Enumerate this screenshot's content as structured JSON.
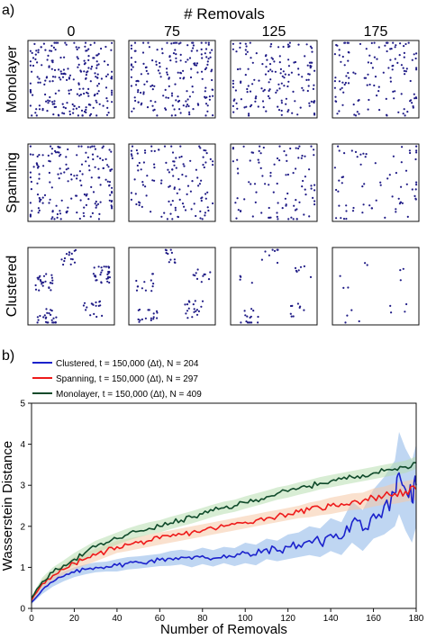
{
  "panel_a": {
    "label": "a)",
    "top_title": "# Removals",
    "columns": [
      "0",
      "75",
      "125",
      "175"
    ],
    "rows": [
      {
        "label": "Monolayer",
        "kind": "uniform",
        "counts": [
          409,
          334,
          284,
          234
        ]
      },
      {
        "label": "Spanning",
        "kind": "spanning",
        "counts": [
          297,
          222,
          172,
          122
        ]
      },
      {
        "label": "Clustered",
        "kind": "clustered",
        "counts": [
          204,
          129,
          79,
          29
        ]
      }
    ],
    "dot_color": "#1f1b86"
  },
  "panel_b": {
    "label": "b)",
    "chart_data": {
      "type": "line",
      "xlabel": "Number of Removals",
      "ylabel": "Wasserstein Distance",
      "xlim": [
        0,
        180
      ],
      "ylim": [
        0,
        5
      ],
      "xticks": [
        "0",
        "20",
        "40",
        "60",
        "80",
        "100",
        "120",
        "140",
        "160",
        "180"
      ],
      "yticks": [
        "0",
        "1",
        "2",
        "3",
        "4",
        "5"
      ],
      "legend_position": "top-left (above plot)",
      "series": [
        {
          "name": "Clustered, t = 150,000 (Δt), N = 204",
          "color": "#1b22cc",
          "band_color": "#8ab4e8",
          "x": [
            0,
            5,
            10,
            15,
            20,
            25,
            30,
            35,
            40,
            45,
            50,
            55,
            60,
            65,
            70,
            75,
            80,
            85,
            90,
            95,
            100,
            105,
            110,
            115,
            120,
            125,
            130,
            135,
            140,
            145,
            150,
            155,
            160,
            165,
            170,
            172,
            175,
            178,
            180
          ],
          "y": [
            0.15,
            0.45,
            0.65,
            0.78,
            0.88,
            0.95,
            1.0,
            1.02,
            1.05,
            1.1,
            1.12,
            1.15,
            1.18,
            1.22,
            1.25,
            1.2,
            1.28,
            1.22,
            1.3,
            1.25,
            1.35,
            1.3,
            1.45,
            1.4,
            1.5,
            1.55,
            1.65,
            1.6,
            1.8,
            1.7,
            2.1,
            1.9,
            2.3,
            2.5,
            2.8,
            3.3,
            2.9,
            2.6,
            3.0
          ],
          "band": [
            0.05,
            0.1,
            0.12,
            0.12,
            0.12,
            0.12,
            0.12,
            0.12,
            0.15,
            0.15,
            0.15,
            0.15,
            0.15,
            0.18,
            0.18,
            0.2,
            0.2,
            0.2,
            0.2,
            0.22,
            0.25,
            0.25,
            0.25,
            0.25,
            0.3,
            0.3,
            0.35,
            0.35,
            0.4,
            0.4,
            0.5,
            0.5,
            0.6,
            0.7,
            0.8,
            1.0,
            1.0,
            1.0,
            1.0
          ]
        },
        {
          "name": "Spanning, t = 150,000 (Δt), N = 297",
          "color": "#ee1a1a",
          "band_color": "#f5c9a5",
          "x": [
            0,
            5,
            10,
            15,
            20,
            25,
            30,
            35,
            40,
            45,
            50,
            55,
            60,
            65,
            70,
            75,
            80,
            85,
            90,
            95,
            100,
            105,
            110,
            115,
            120,
            125,
            130,
            135,
            140,
            145,
            150,
            155,
            160,
            165,
            170,
            175,
            180
          ],
          "y": [
            0.2,
            0.6,
            0.8,
            0.95,
            1.1,
            1.2,
            1.3,
            1.4,
            1.5,
            1.55,
            1.6,
            1.65,
            1.7,
            1.75,
            1.8,
            1.85,
            1.9,
            1.95,
            2.0,
            2.05,
            2.1,
            2.15,
            2.2,
            2.25,
            2.3,
            2.35,
            2.4,
            2.45,
            2.5,
            2.55,
            2.6,
            2.62,
            2.7,
            2.75,
            2.8,
            2.85,
            2.9
          ],
          "band": [
            0.05,
            0.1,
            0.12,
            0.12,
            0.15,
            0.15,
            0.15,
            0.15,
            0.15,
            0.15,
            0.15,
            0.15,
            0.15,
            0.15,
            0.15,
            0.15,
            0.15,
            0.15,
            0.15,
            0.15,
            0.15,
            0.15,
            0.15,
            0.15,
            0.15,
            0.15,
            0.18,
            0.18,
            0.2,
            0.2,
            0.2,
            0.2,
            0.22,
            0.22,
            0.25,
            0.25,
            0.25
          ]
        },
        {
          "name": "Monolayer, t = 150,000 (Δt), N = 409",
          "color": "#0f4a2a",
          "band_color": "#b8dfb0",
          "x": [
            0,
            5,
            10,
            15,
            20,
            25,
            30,
            35,
            40,
            45,
            50,
            55,
            60,
            65,
            70,
            75,
            80,
            85,
            90,
            95,
            100,
            105,
            110,
            115,
            120,
            125,
            130,
            135,
            140,
            145,
            150,
            155,
            160,
            165,
            170,
            175,
            180
          ],
          "y": [
            0.25,
            0.65,
            0.88,
            1.05,
            1.2,
            1.35,
            1.5,
            1.6,
            1.7,
            1.8,
            1.88,
            1.95,
            2.0,
            2.08,
            2.15,
            2.22,
            2.3,
            2.38,
            2.45,
            2.5,
            2.58,
            2.65,
            2.72,
            2.8,
            2.85,
            2.92,
            2.98,
            3.05,
            3.1,
            3.15,
            3.2,
            3.25,
            3.3,
            3.35,
            3.4,
            3.45,
            3.55
          ],
          "band": [
            0.05,
            0.1,
            0.12,
            0.12,
            0.15,
            0.15,
            0.15,
            0.15,
            0.15,
            0.15,
            0.15,
            0.15,
            0.15,
            0.15,
            0.15,
            0.15,
            0.15,
            0.15,
            0.15,
            0.15,
            0.15,
            0.15,
            0.15,
            0.15,
            0.15,
            0.15,
            0.15,
            0.15,
            0.15,
            0.15,
            0.15,
            0.15,
            0.15,
            0.15,
            0.15,
            0.15,
            0.15
          ]
        }
      ]
    }
  }
}
